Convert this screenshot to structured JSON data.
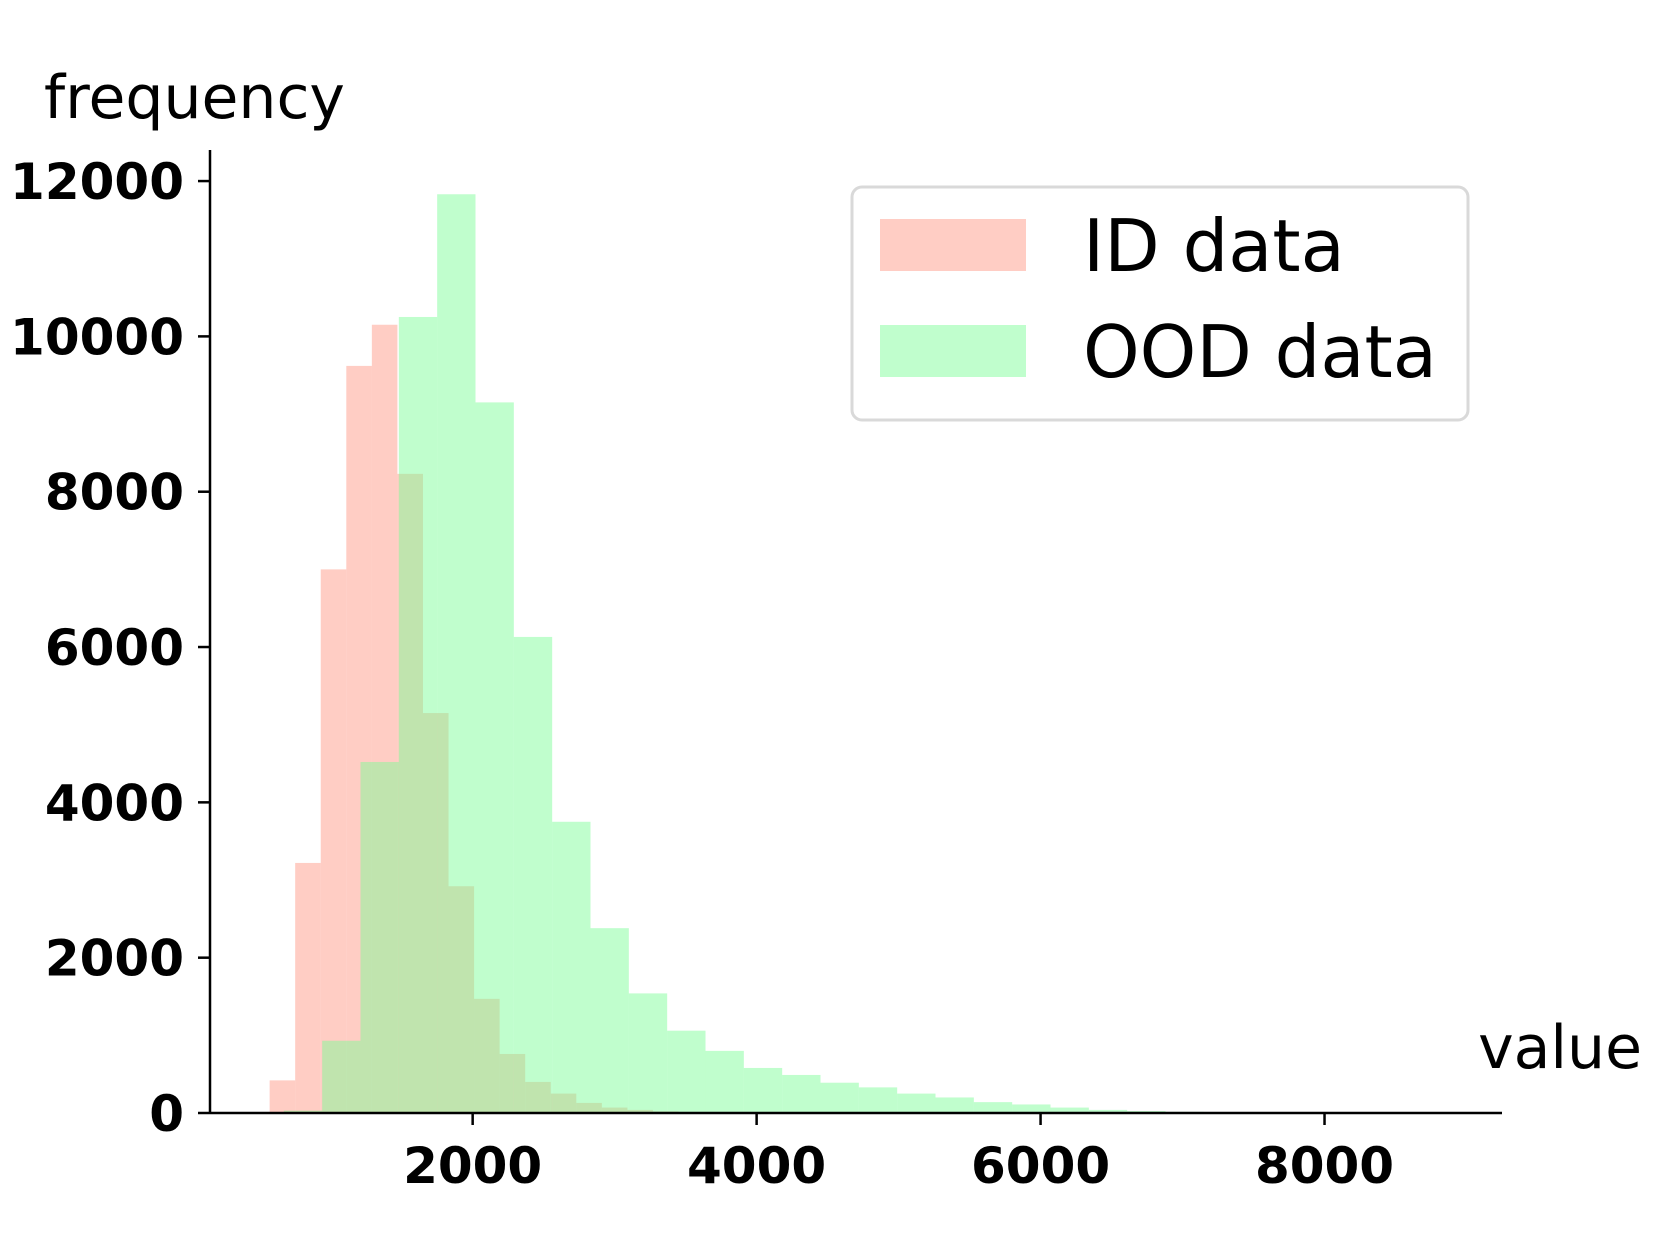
{
  "chart_data": {
    "type": "bar",
    "subtype": "overlapping-histogram",
    "title": "",
    "xlabel": "value",
    "ylabel": "frequency",
    "xlim": [
      150,
      9250
    ],
    "ylim": [
      0,
      12400
    ],
    "x_ticks": [
      2000,
      4000,
      6000,
      8000
    ],
    "x_tick_labels": [
      "2000",
      "4000",
      "6000",
      "8000"
    ],
    "y_ticks": [
      0,
      2000,
      4000,
      6000,
      8000,
      10000,
      12000
    ],
    "y_tick_labels": [
      "0",
      "2000",
      "4000",
      "6000",
      "8000",
      "10000",
      "12000"
    ],
    "grid": false,
    "legend": {
      "placement": "top-right",
      "entries": [
        "ID data",
        "OOD data"
      ]
    },
    "series": [
      {
        "name": "ID data",
        "color": "#ffa494",
        "opacity": 0.55,
        "bin_edges": [
          570,
          750,
          930,
          1110,
          1290,
          1470,
          1650,
          1830,
          2010,
          2190,
          2370,
          2550,
          2730,
          2910,
          3090,
          3270,
          3450,
          3630,
          3810
        ],
        "counts": [
          420,
          3220,
          7000,
          9620,
          10150,
          8230,
          5150,
          2920,
          1470,
          760,
          400,
          250,
          130,
          70,
          40,
          20,
          10,
          5
        ]
      },
      {
        "name": "OOD data",
        "color": "#7cfc96",
        "opacity": 0.48,
        "bin_edges": [
          670,
          940,
          1210,
          1480,
          1750,
          2020,
          2290,
          2560,
          2830,
          3100,
          3370,
          3640,
          3910,
          4180,
          4450,
          4720,
          4990,
          5260,
          5530,
          5800,
          6070,
          6340,
          6610,
          6880,
          7150,
          7420,
          7690,
          7960
        ],
        "counts": [
          30,
          930,
          4520,
          10250,
          11830,
          9150,
          6130,
          3750,
          2380,
          1540,
          1060,
          800,
          580,
          490,
          390,
          330,
          250,
          200,
          140,
          110,
          70,
          40,
          25,
          15,
          10,
          6,
          3
        ]
      }
    ]
  }
}
